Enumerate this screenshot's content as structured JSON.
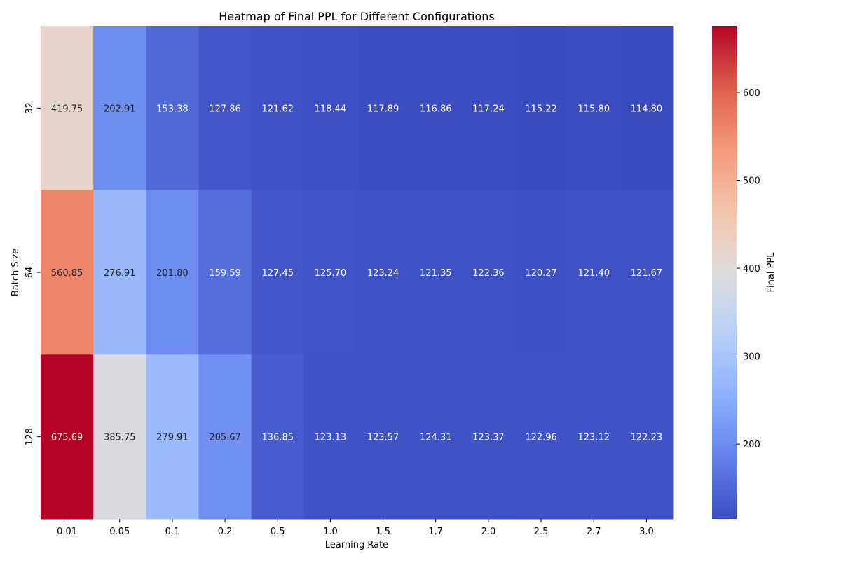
{
  "chart_data": {
    "type": "heatmap",
    "title": "Heatmap of Final PPL for Different Configurations",
    "xlabel": "Learning Rate",
    "ylabel": "Batch Size",
    "x_categories": [
      "0.01",
      "0.05",
      "0.1",
      "0.2",
      "0.5",
      "1.0",
      "1.5",
      "1.7",
      "2.0",
      "2.5",
      "2.7",
      "3.0"
    ],
    "y_categories": [
      "32",
      "64",
      "128"
    ],
    "values": [
      [
        419.75,
        202.91,
        153.38,
        127.86,
        121.62,
        118.44,
        117.89,
        116.86,
        117.24,
        115.22,
        115.8,
        114.8
      ],
      [
        560.85,
        276.91,
        201.8,
        159.59,
        127.45,
        125.7,
        123.24,
        121.35,
        122.36,
        120.27,
        121.4,
        121.67
      ],
      [
        675.69,
        385.75,
        279.91,
        205.67,
        136.85,
        123.13,
        123.57,
        124.31,
        123.37,
        122.96,
        123.12,
        122.23
      ]
    ],
    "value_format": "0.00",
    "colormap": "coolwarm",
    "colorbar": {
      "label": "Final PPL",
      "range": [
        114.8,
        675.69
      ],
      "ticks": [
        200,
        300,
        400,
        500,
        600
      ]
    },
    "colors": {
      "low": "#3b4cc0",
      "mid": "#dddcdc",
      "high": "#b40426"
    }
  }
}
